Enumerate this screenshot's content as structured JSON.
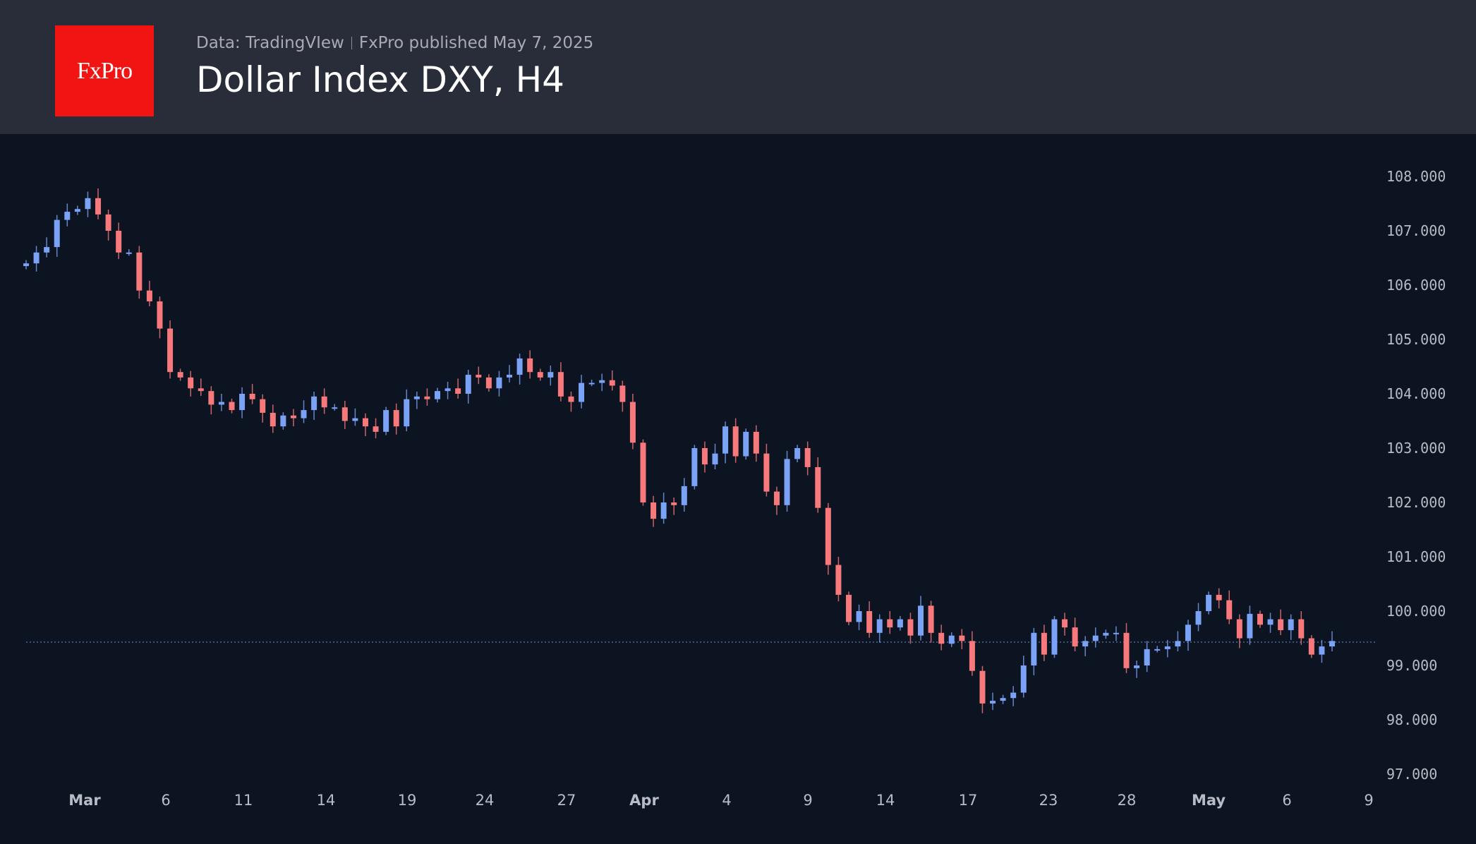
{
  "header": {
    "logo_text": "FxPro",
    "source": "Data: TradingVIew",
    "published": "FxPro published May 7, 2025",
    "title": "Dollar Index DXY, H4"
  },
  "chart_data": {
    "type": "candlestick",
    "title": "Dollar Index DXY, H4",
    "ylim": [
      97,
      108
    ],
    "y_ticks": [
      "108.000",
      "107.000",
      "106.000",
      "105.000",
      "104.000",
      "103.000",
      "102.000",
      "101.000",
      "100.000",
      "99.000",
      "98.000",
      "97.000"
    ],
    "x_ticks": [
      "Mar",
      "6",
      "11",
      "14",
      "19",
      "24",
      "27",
      "Apr",
      "4",
      "9",
      "14",
      "17",
      "23",
      "28",
      "May",
      "6",
      "9"
    ],
    "last_price": 99.43,
    "colors": {
      "up": "#7aa2f7",
      "down": "#f7797c",
      "last_price_line": "#4a6a9a"
    },
    "closes": [
      106.4,
      106.6,
      106.7,
      107.2,
      107.35,
      107.4,
      107.6,
      107.3,
      107.0,
      106.6,
      106.6,
      105.9,
      105.7,
      105.2,
      104.4,
      104.3,
      104.1,
      104.05,
      103.8,
      103.85,
      103.7,
      104.0,
      103.9,
      103.65,
      103.4,
      103.6,
      103.55,
      103.7,
      103.95,
      103.75,
      103.75,
      103.5,
      103.55,
      103.4,
      103.3,
      103.7,
      103.4,
      103.9,
      103.95,
      103.9,
      104.05,
      104.1,
      104.0,
      104.35,
      104.3,
      104.1,
      104.3,
      104.35,
      104.65,
      104.4,
      104.3,
      104.4,
      103.95,
      103.85,
      104.2,
      104.2,
      104.25,
      104.15,
      103.85,
      103.1,
      102.0,
      101.7,
      102.0,
      101.95,
      102.3,
      103.0,
      102.7,
      102.9,
      103.4,
      102.85,
      103.3,
      102.9,
      102.2,
      101.95,
      102.8,
      103.0,
      102.65,
      101.9,
      100.85,
      100.3,
      99.8,
      100.0,
      99.6,
      99.85,
      99.7,
      99.85,
      99.55,
      100.1,
      99.6,
      99.4,
      99.55,
      99.45,
      98.9,
      98.3,
      98.35,
      98.4,
      98.5,
      99.0,
      99.6,
      99.2,
      99.85,
      99.7,
      99.35,
      99.45,
      99.55,
      99.6,
      99.6,
      98.95,
      99.0,
      99.3,
      99.3,
      99.35,
      99.45,
      99.75,
      100.0,
      100.3,
      100.2,
      99.85,
      99.5,
      99.95,
      99.75,
      99.85,
      99.65,
      99.85,
      99.5,
      99.2,
      99.35,
      99.45
    ]
  }
}
